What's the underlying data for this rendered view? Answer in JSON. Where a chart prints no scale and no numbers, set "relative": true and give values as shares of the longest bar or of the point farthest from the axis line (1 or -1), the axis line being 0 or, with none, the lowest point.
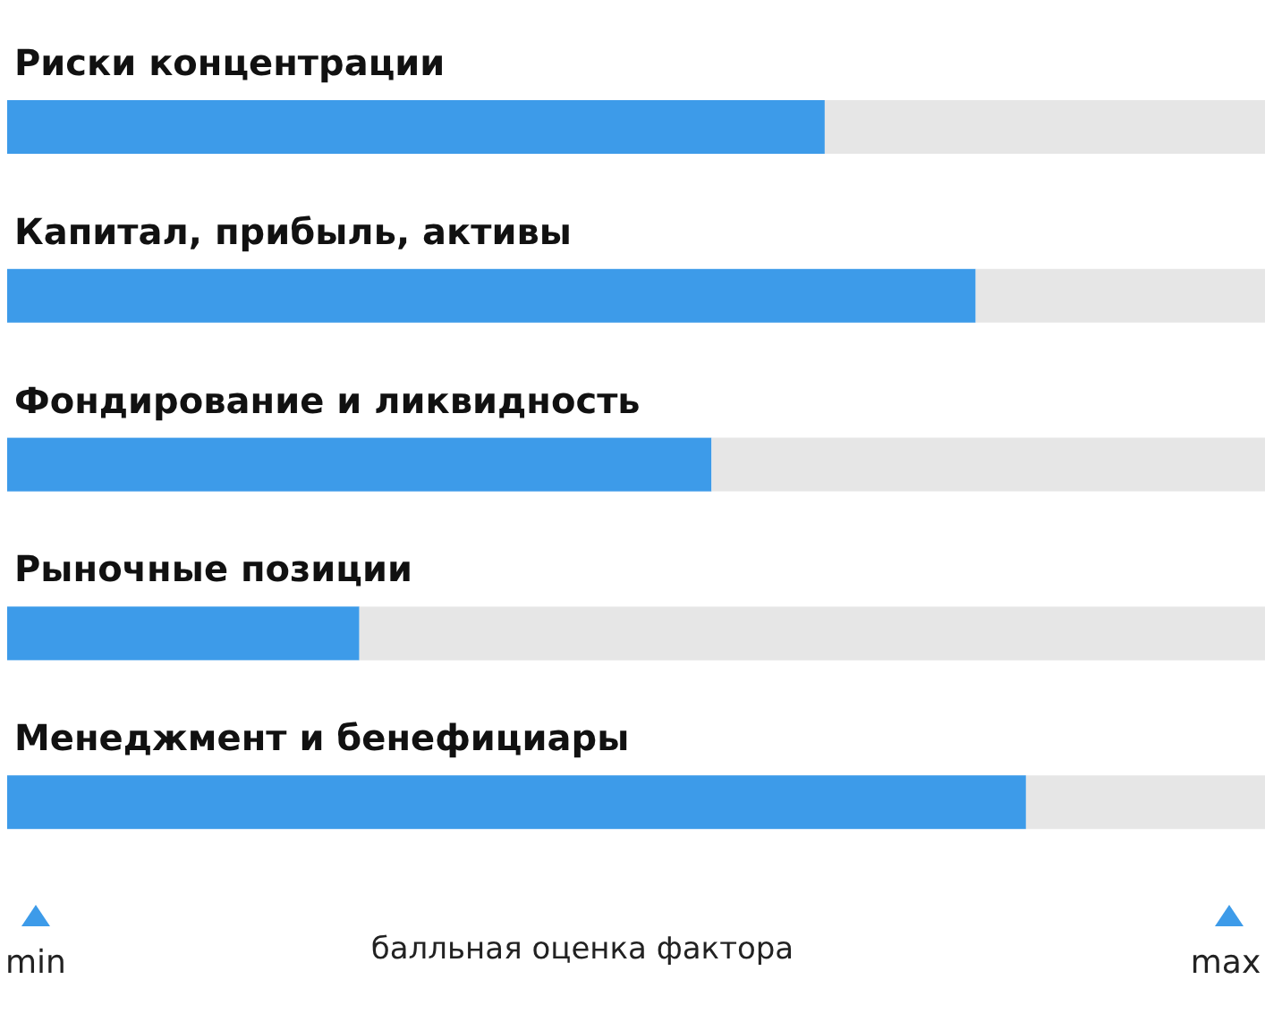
{
  "chart_data": {
    "type": "bar",
    "orientation": "horizontal",
    "relative": true,
    "stacked": true,
    "categories": [
      "Риски концентрации",
      "Капитал, прибыль, активы",
      "Фондирование и ликвидность",
      "Рыночные позиции",
      "Менеджмент и бенефициары"
    ],
    "series": [
      {
        "color": "#3d9be9",
        "values": [
          0.65,
          0.77,
          0.56,
          0.28,
          0.81
        ]
      },
      {
        "color": "#e6e6e6",
        "values": [
          0.35,
          0.23,
          0.44,
          0.72,
          0.19
        ]
      }
    ],
    "xlabel": "балльная оценка фактора",
    "annotations": [
      "min",
      "max"
    ]
  }
}
